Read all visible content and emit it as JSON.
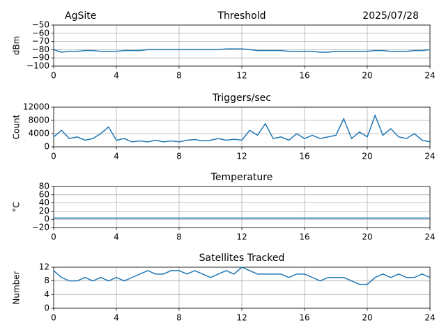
{
  "chart_data": [
    {
      "type": "line",
      "left_title": "AgSite",
      "title": "Threshold",
      "right_title": "2025/07/28",
      "ylabel": "dBm",
      "x": [
        0,
        0.5,
        1,
        1.5,
        2,
        2.5,
        3,
        3.5,
        4,
        4.5,
        5,
        5.5,
        6,
        6.5,
        7,
        7.5,
        8,
        8.5,
        9,
        9.5,
        10,
        10.5,
        11,
        11.5,
        12,
        12.5,
        13,
        13.5,
        14,
        14.5,
        15,
        15.5,
        16,
        16.5,
        17,
        17.5,
        18,
        18.5,
        19,
        19.5,
        20,
        20.5,
        21,
        21.5,
        22,
        22.5,
        23,
        23.5,
        24
      ],
      "series": [
        {
          "color": "#1f77b4",
          "values": [
            -80,
            -83,
            -82,
            -82,
            -81,
            -81,
            -82,
            -82,
            -82,
            -81,
            -81,
            -81,
            -80,
            -80,
            -80,
            -80,
            -80,
            -80,
            -80,
            -80,
            -80,
            -80,
            -79,
            -79,
            -79,
            -80,
            -81,
            -81,
            -81,
            -81,
            -82,
            -82,
            -82,
            -82,
            -83,
            -83,
            -82,
            -82,
            -82,
            -82,
            -82,
            -81,
            -81,
            -82,
            -82,
            -82,
            -81,
            -81,
            -80
          ]
        }
      ],
      "xlim": [
        0,
        24
      ],
      "xticks": [
        0,
        4,
        8,
        12,
        16,
        20,
        24
      ],
      "ylim": [
        -100,
        -50
      ],
      "yticks": [
        {
          "value": -50,
          "label": "−50"
        },
        {
          "value": -60,
          "label": "−60"
        },
        {
          "value": -70,
          "label": "−70"
        },
        {
          "value": -80,
          "label": "−80"
        },
        {
          "value": -90,
          "label": "−90"
        },
        {
          "value": -100,
          "label": "−100"
        }
      ],
      "grid": true
    },
    {
      "type": "line",
      "title": "Triggers/sec",
      "ylabel": "Count",
      "x": [
        0,
        0.5,
        1,
        1.5,
        2,
        2.5,
        3,
        3.5,
        4,
        4.5,
        5,
        5.5,
        6,
        6.5,
        7,
        7.5,
        8,
        8.5,
        9,
        9.5,
        10,
        10.5,
        11,
        11.5,
        12,
        12.5,
        13,
        13.5,
        14,
        14.5,
        15,
        15.5,
        16,
        16.5,
        17,
        17.5,
        18,
        18.5,
        19,
        19.5,
        20,
        20.5,
        21,
        21.5,
        22,
        22.5,
        23,
        23.5,
        24
      ],
      "series": [
        {
          "color": "#1f77b4",
          "values": [
            3000,
            5000,
            2500,
            3000,
            2000,
            2500,
            4000,
            6000,
            2000,
            2500,
            1500,
            1800,
            1500,
            2000,
            1500,
            1800,
            1500,
            2000,
            2200,
            1800,
            2000,
            2500,
            2000,
            2300,
            2000,
            5000,
            3500,
            7000,
            2500,
            3000,
            2000,
            4000,
            2500,
            3500,
            2500,
            3000,
            3500,
            8500,
            2500,
            4500,
            3000,
            9500,
            3500,
            5500,
            3000,
            2500,
            4000,
            2000,
            1500
          ]
        }
      ],
      "xlim": [
        0,
        24
      ],
      "xticks": [
        0,
        4,
        8,
        12,
        16,
        20,
        24
      ],
      "ylim": [
        0,
        12000
      ],
      "yticks": [
        0,
        4000,
        8000,
        12000
      ],
      "grid": true
    },
    {
      "type": "line",
      "title": "Temperature",
      "ylabel": "°C",
      "x": [
        0,
        0.5,
        1,
        1.5,
        2,
        2.5,
        3,
        3.5,
        4,
        4.5,
        5,
        5.5,
        6,
        6.5,
        7,
        7.5,
        8,
        8.5,
        9,
        9.5,
        10,
        10.5,
        11,
        11.5,
        12,
        12.5,
        13,
        13.5,
        14,
        14.5,
        15,
        15.5,
        16,
        16.5,
        17,
        17.5,
        18,
        18.5,
        19,
        19.5,
        20,
        20.5,
        21,
        21.5,
        22,
        22.5,
        23,
        23.5,
        24
      ],
      "series": [
        {
          "color": "#1f77b4",
          "values": [
            3,
            3,
            3,
            3,
            3,
            3,
            3,
            3,
            3,
            3,
            3,
            3,
            3,
            3,
            3,
            3,
            3,
            3,
            3,
            3,
            3,
            3,
            3,
            3,
            3,
            3,
            3,
            3,
            3,
            3,
            3,
            3,
            3,
            3,
            3,
            3,
            3,
            3,
            3,
            3,
            3,
            3,
            3,
            3,
            3,
            3,
            3,
            3,
            3
          ]
        }
      ],
      "xlim": [
        0,
        24
      ],
      "xticks": [
        0,
        4,
        8,
        12,
        16,
        20,
        24
      ],
      "ylim": [
        -20,
        80
      ],
      "yticks": [
        {
          "value": -20,
          "label": "−20"
        },
        0,
        20,
        40,
        60,
        80
      ],
      "grid": true
    },
    {
      "type": "line",
      "title": "Satellites Tracked",
      "ylabel": "Number",
      "x": [
        0,
        0.5,
        1,
        1.5,
        2,
        2.5,
        3,
        3.5,
        4,
        4.5,
        5,
        5.5,
        6,
        6.5,
        7,
        7.5,
        8,
        8.5,
        9,
        9.5,
        10,
        10.5,
        11,
        11.5,
        12,
        12.5,
        13,
        13.5,
        14,
        14.5,
        15,
        15.5,
        16,
        16.5,
        17,
        17.5,
        18,
        18.5,
        19,
        19.5,
        20,
        20.5,
        21,
        21.5,
        22,
        22.5,
        23,
        23.5,
        24
      ],
      "series": [
        {
          "color": "#1f77b4",
          "values": [
            11,
            9,
            8,
            8,
            9,
            8,
            9,
            8,
            9,
            8,
            9,
            10,
            11,
            10,
            10,
            11,
            11,
            10,
            11,
            10,
            9,
            10,
            11,
            10,
            12,
            11,
            10,
            10,
            10,
            10,
            9,
            10,
            10,
            9,
            8,
            9,
            9,
            9,
            8,
            7,
            7,
            9,
            10,
            9,
            10,
            9,
            9,
            10,
            9
          ]
        }
      ],
      "xlim": [
        0,
        24
      ],
      "xticks": [
        0,
        4,
        8,
        12,
        16,
        20,
        24
      ],
      "ylim": [
        0,
        12
      ],
      "yticks": [
        0,
        4,
        8,
        12
      ],
      "grid": true
    }
  ]
}
